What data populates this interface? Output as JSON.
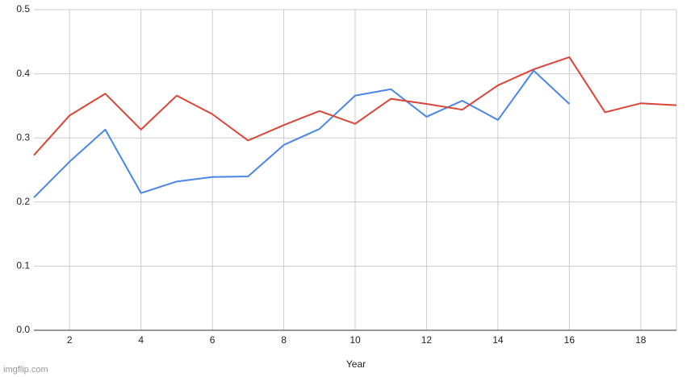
{
  "chart_data": {
    "type": "line",
    "x_label": "Year",
    "watermark": "imgflip.com",
    "x": [
      1,
      2,
      3,
      4,
      5,
      6,
      7,
      8,
      9,
      10,
      11,
      12,
      13,
      14,
      15,
      16,
      17,
      18,
      19
    ],
    "series": [
      {
        "color": "#4a86e8",
        "values": [
          0.207,
          0.263,
          0.313,
          0.214,
          0.232,
          0.239,
          0.24,
          0.289,
          0.314,
          0.366,
          0.376,
          0.333,
          0.358,
          0.328,
          0.405,
          0.353,
          null,
          null,
          null
        ]
      },
      {
        "color": "#db4437",
        "values": [
          0.273,
          0.335,
          0.369,
          0.313,
          0.366,
          0.337,
          0.296,
          0.32,
          0.342,
          0.322,
          0.361,
          0.353,
          0.344,
          0.382,
          0.407,
          0.426,
          0.34,
          0.354,
          0.351
        ]
      }
    ],
    "xlim": [
      1,
      19
    ],
    "xticks": [
      2,
      4,
      6,
      8,
      10,
      12,
      14,
      16,
      18
    ],
    "ylim": [
      0,
      0.5
    ],
    "yticks": [
      {
        "value": 0,
        "label": "0.0"
      },
      0.1,
      0.2,
      0.3,
      0.4,
      0.5
    ],
    "grid": true
  }
}
